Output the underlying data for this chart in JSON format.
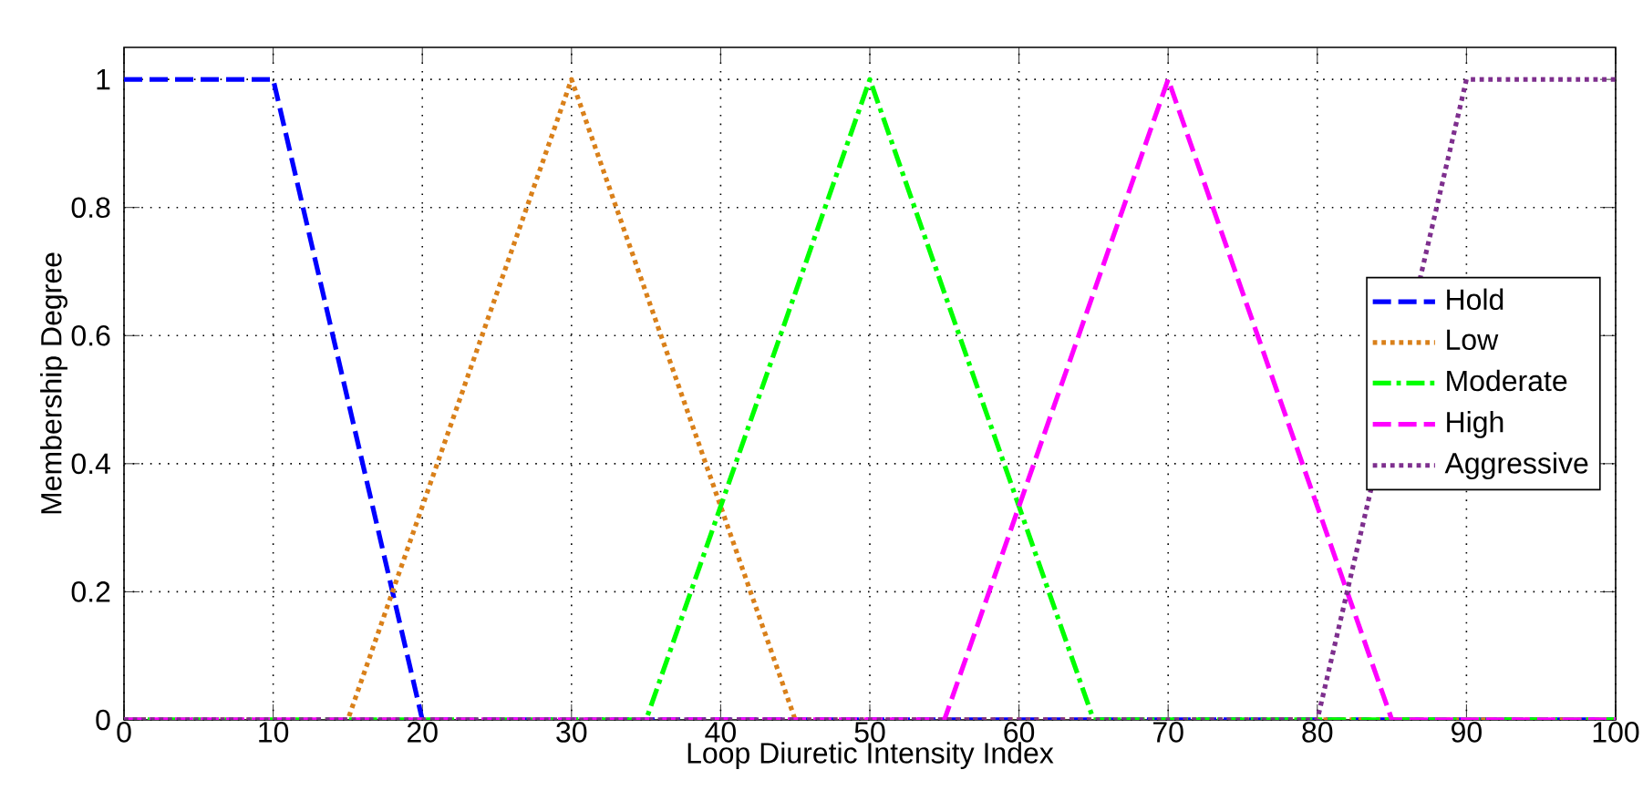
{
  "chart_data": {
    "type": "line",
    "xlabel": "Loop Diuretic Intensity Index",
    "ylabel": "Membership Degree",
    "xlim": [
      0,
      100
    ],
    "ylim": [
      0,
      1.05
    ],
    "xticks": [
      0,
      10,
      20,
      30,
      40,
      50,
      60,
      70,
      80,
      90,
      100
    ],
    "yticks": [
      0,
      0.2,
      0.4,
      0.6,
      0.8,
      1
    ],
    "grid": true,
    "legend": "right",
    "series": [
      {
        "name": "Hold",
        "color": "#0000ff",
        "line_style": "dashed",
        "x": [
          0,
          10,
          20,
          100
        ],
        "values": [
          1,
          1,
          0,
          0
        ]
      },
      {
        "name": "Low",
        "color": "#d9801a",
        "line_style": "dotted",
        "x": [
          0,
          15,
          30,
          45,
          100
        ],
        "values": [
          0,
          0,
          1,
          0,
          0
        ]
      },
      {
        "name": "Moderate",
        "color": "#00ff00",
        "line_style": "dashdot",
        "x": [
          0,
          35,
          50,
          65,
          100
        ],
        "values": [
          0,
          0,
          1,
          0,
          0
        ]
      },
      {
        "name": "High",
        "color": "#ff00ff",
        "line_style": "dashed",
        "x": [
          0,
          55,
          70,
          85,
          100
        ],
        "values": [
          0,
          0,
          1,
          0,
          0
        ]
      },
      {
        "name": "Aggressive",
        "color": "#7e2f8e",
        "line_style": "dotted",
        "x": [
          0,
          80,
          90,
          100
        ],
        "values": [
          0,
          0,
          1,
          1
        ]
      }
    ]
  }
}
